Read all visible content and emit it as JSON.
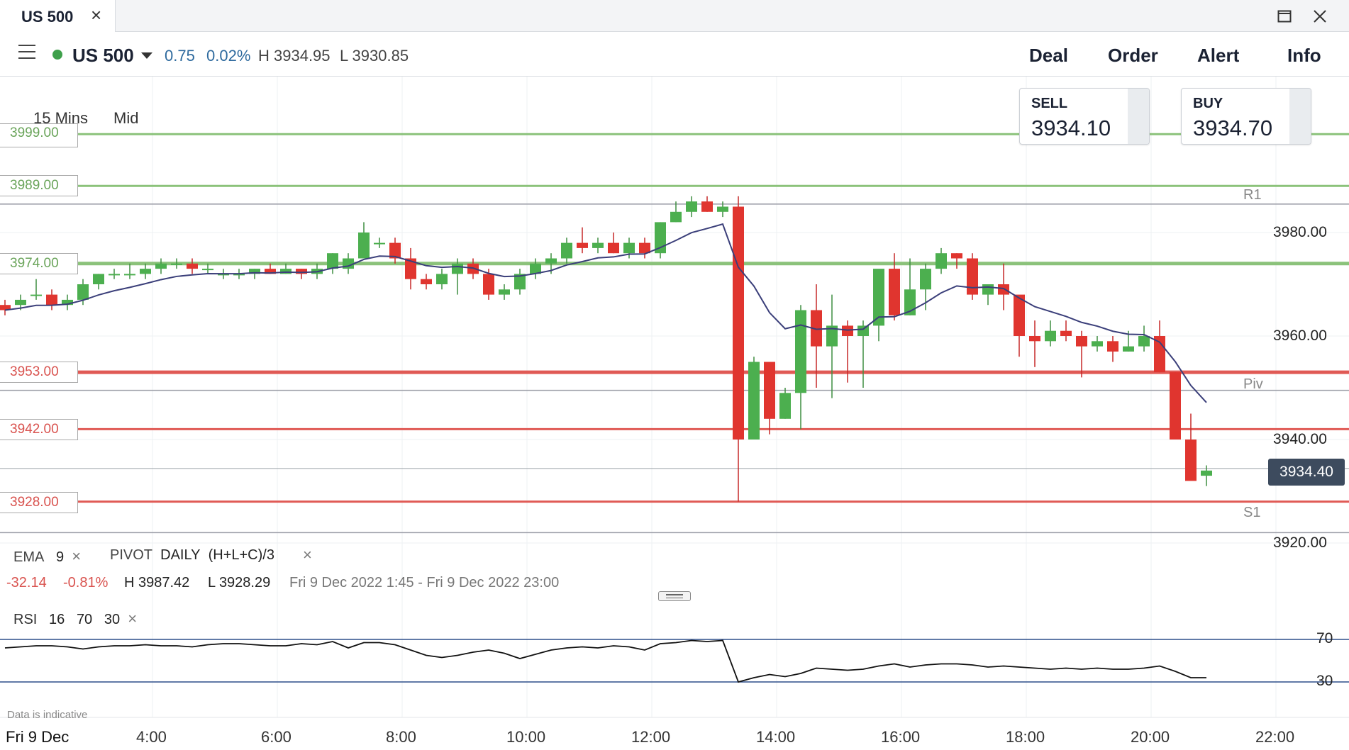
{
  "tab": {
    "title": "US 500"
  },
  "toolbar": {
    "instrument": "US 500",
    "change": "0.75",
    "change_pct": "0.02%",
    "high": "H 3934.95",
    "low": "L 3930.85",
    "nav": [
      "Deal",
      "Order",
      "Alert",
      "Info"
    ]
  },
  "chart": {
    "timeframe": "15 Mins",
    "price_type": "Mid",
    "sell": {
      "label": "SELL",
      "value": "3934.10"
    },
    "buy": {
      "label": "BUY",
      "value": "3934.70"
    },
    "current_price": "3934.40",
    "y_ticks": [
      "3980.00",
      "3960.00",
      "3940.00",
      "3920.00"
    ],
    "x_ticks": [
      "4:00",
      "6:00",
      "8:00",
      "10:00",
      "12:00",
      "14:00",
      "16:00",
      "18:00",
      "20:00",
      "22:00"
    ],
    "date_label": "Fri 9 Dec",
    "levels": [
      {
        "label": "3999.00",
        "color": "#8bc27a"
      },
      {
        "label": "3989.00",
        "color": "#8bc27a"
      },
      {
        "label": "3974.00",
        "color": "#8bc27a"
      },
      {
        "label": "3953.00",
        "color": "#e05a55"
      },
      {
        "label": "3942.00",
        "color": "#e05a55"
      },
      {
        "label": "3928.00",
        "color": "#e05a55"
      }
    ],
    "pivots": [
      {
        "label": "R1"
      },
      {
        "label": "Piv"
      },
      {
        "label": "S1"
      }
    ],
    "disclaimer": "Data is indicative"
  },
  "indicators": {
    "ema": {
      "name": "EMA",
      "period": "9"
    },
    "pivot": {
      "name": "PIVOT",
      "period": "DAILY",
      "formula": "(H+L+C)/3"
    },
    "summary": {
      "change": "-32.14",
      "change_pct": "-0.81%",
      "high": "H 3987.42",
      "low": "L 3928.29",
      "range": "Fri 9 Dec 2022 1:45 - Fri 9 Dec 2022 23:00"
    },
    "rsi": {
      "name": "RSI",
      "period": "16",
      "upper": "70",
      "lower": "30"
    }
  },
  "chart_data": {
    "type": "candlestick",
    "x_range": [
      "1:45",
      "22:45"
    ],
    "y_range": [
      3912,
      4001
    ],
    "candles_ohlc": [
      [
        3966,
        3967,
        3964,
        3965
      ],
      [
        3966,
        3968,
        3965,
        3967
      ],
      [
        3968,
        3971,
        3967,
        3968
      ],
      [
        3968,
        3969,
        3965,
        3966
      ],
      [
        3966,
        3968,
        3965,
        3967
      ],
      [
        3967,
        3971,
        3966,
        3970
      ],
      [
        3970,
        3972,
        3969,
        3972
      ],
      [
        3972,
        3973,
        3971,
        3972
      ],
      [
        3972,
        3974,
        3971,
        3972
      ],
      [
        3972,
        3974,
        3971,
        3973
      ],
      [
        3973,
        3975,
        3972,
        3974
      ],
      [
        3974,
        3975,
        3973,
        3974
      ],
      [
        3974,
        3975,
        3972,
        3973
      ],
      [
        3973,
        3974,
        3972,
        3973
      ],
      [
        3972,
        3973,
        3971,
        3972
      ],
      [
        3972,
        3973,
        3971,
        3972
      ],
      [
        3972,
        3973,
        3971,
        3973
      ],
      [
        3973,
        3974,
        3972,
        3972
      ],
      [
        3972,
        3974,
        3972,
        3973
      ],
      [
        3973,
        3973,
        3971,
        3972
      ],
      [
        3972,
        3974,
        3971,
        3973
      ],
      [
        3973,
        3976,
        3972,
        3976
      ],
      [
        3973,
        3976,
        3972,
        3975
      ],
      [
        3975,
        3982,
        3975,
        3980
      ],
      [
        3978,
        3979,
        3977,
        3978
      ],
      [
        3978,
        3979,
        3974,
        3975
      ],
      [
        3975,
        3977,
        3969,
        3971
      ],
      [
        3971,
        3972,
        3969,
        3970
      ],
      [
        3970,
        3973,
        3969,
        3972
      ],
      [
        3972,
        3975,
        3968,
        3974
      ],
      [
        3974,
        3975,
        3971,
        3972
      ],
      [
        3972,
        3973,
        3967,
        3968
      ],
      [
        3968,
        3970,
        3967,
        3969
      ],
      [
        3969,
        3973,
        3968,
        3972
      ],
      [
        3972,
        3975,
        3971,
        3974
      ],
      [
        3974,
        3976,
        3972,
        3975
      ],
      [
        3975,
        3979,
        3974,
        3978
      ],
      [
        3978,
        3981,
        3976,
        3977
      ],
      [
        3977,
        3979,
        3976,
        3978
      ],
      [
        3978,
        3980,
        3976,
        3976
      ],
      [
        3976,
        3979,
        3975,
        3978
      ],
      [
        3978,
        3979,
        3975,
        3976
      ],
      [
        3976,
        3982,
        3975,
        3982
      ],
      [
        3982,
        3986,
        3982,
        3984
      ],
      [
        3984,
        3987,
        3983,
        3986
      ],
      [
        3986,
        3987,
        3984,
        3984
      ],
      [
        3984,
        3986,
        3983,
        3985
      ],
      [
        3985,
        3987,
        3928,
        3940
      ],
      [
        3940,
        3956,
        3940,
        3955
      ],
      [
        3955,
        3955,
        3941,
        3944
      ],
      [
        3944,
        3950,
        3944,
        3949
      ],
      [
        3949,
        3966,
        3942,
        3965
      ],
      [
        3965,
        3970,
        3950,
        3958
      ],
      [
        3958,
        3968,
        3948,
        3962
      ],
      [
        3962,
        3963,
        3951,
        3960
      ],
      [
        3960,
        3963,
        3950,
        3962
      ],
      [
        3962,
        3971,
        3959,
        3973
      ],
      [
        3973,
        3976,
        3963,
        3964
      ],
      [
        3964,
        3975,
        3964,
        3969
      ],
      [
        3969,
        3974,
        3965,
        3973
      ],
      [
        3973,
        3977,
        3972,
        3976
      ],
      [
        3976,
        3976,
        3973,
        3975
      ],
      [
        3975,
        3976,
        3967,
        3968
      ],
      [
        3968,
        3970,
        3966,
        3970
      ],
      [
        3970,
        3974,
        3965,
        3968
      ],
      [
        3968,
        3966,
        3956,
        3960
      ],
      [
        3960,
        3963,
        3954,
        3959
      ],
      [
        3959,
        3963,
        3958,
        3961
      ],
      [
        3961,
        3963,
        3959,
        3960
      ],
      [
        3960,
        3961,
        3952,
        3958
      ],
      [
        3958,
        3960,
        3957,
        3959
      ],
      [
        3959,
        3960,
        3955,
        3957
      ],
      [
        3957,
        3961,
        3957,
        3958
      ],
      [
        3958,
        3962,
        3957,
        3960
      ],
      [
        3960,
        3963,
        3953,
        3953
      ],
      [
        3953,
        3953,
        3940,
        3940
      ],
      [
        3940,
        3945,
        3937,
        3932
      ],
      [
        3933,
        3935,
        3931,
        3934
      ]
    ],
    "ema_period": 9,
    "levels": [
      3999,
      3989,
      3974,
      3953,
      3942,
      3928
    ],
    "pivot_levels": {
      "R1": 3985.5,
      "Piv": 3949.5,
      "S1": 3922
    },
    "rsi": {
      "period": 16,
      "upper": 70,
      "lower": 30,
      "values": [
        62,
        63,
        64,
        64,
        63,
        61,
        63,
        64,
        64,
        65,
        64,
        64,
        63,
        65,
        66,
        66,
        65,
        64,
        64,
        66,
        65,
        68,
        62,
        67,
        67,
        65,
        60,
        55,
        53,
        55,
        58,
        60,
        57,
        52,
        56,
        60,
        62,
        63,
        62,
        64,
        63,
        60,
        66,
        67,
        69,
        68,
        69,
        30,
        34,
        37,
        35,
        38,
        43,
        42,
        41,
        42,
        45,
        47,
        44,
        46,
        47,
        47,
        46,
        44,
        45,
        44,
        43,
        42,
        43,
        42,
        43,
        42,
        42,
        43,
        45,
        40,
        34,
        34
      ]
    }
  }
}
